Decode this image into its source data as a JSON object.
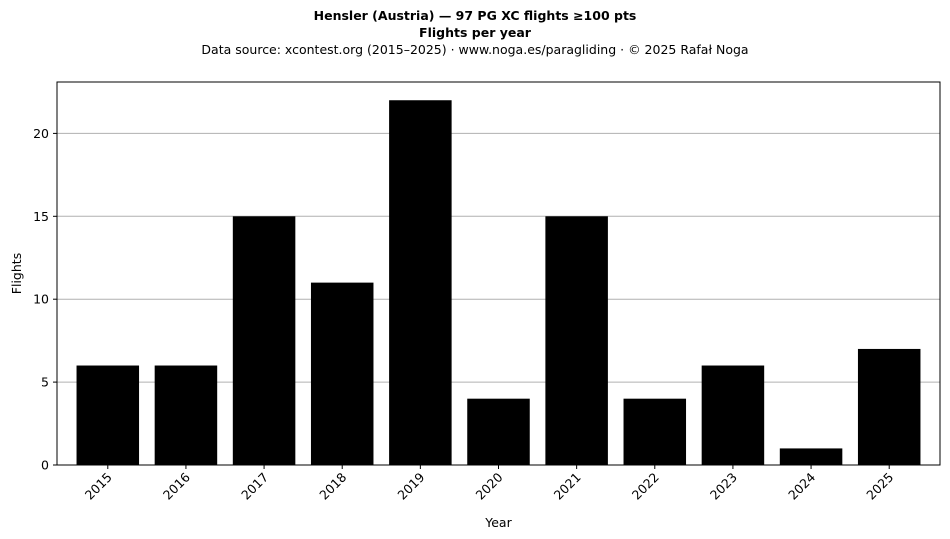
{
  "header": {
    "title": "Hensler (Austria)  —  97 PG XC flights ≥100 pts",
    "subtitle": "Flights per year",
    "source": "Data source: xcontest.org (2015–2025)  ·  www.noga.es/paragliding  ·  © 2025 Rafał Noga"
  },
  "chart_data": {
    "type": "bar",
    "title": "Hensler (Austria)  —  97 PG XC flights ≥100 pts",
    "subtitle": "Flights per year",
    "xlabel": "Year",
    "ylabel": "Flights",
    "categories": [
      "2015",
      "2016",
      "2017",
      "2018",
      "2019",
      "2020",
      "2021",
      "2022",
      "2023",
      "2024",
      "2025"
    ],
    "values": [
      6,
      6,
      15,
      11,
      22,
      4,
      15,
      4,
      6,
      1,
      7
    ],
    "ylim": [
      0,
      23.1
    ],
    "yticks": [
      0,
      5,
      10,
      15,
      20
    ],
    "grid": "y",
    "bar_color": "#000000",
    "grid_color": "#b0b0b0"
  }
}
